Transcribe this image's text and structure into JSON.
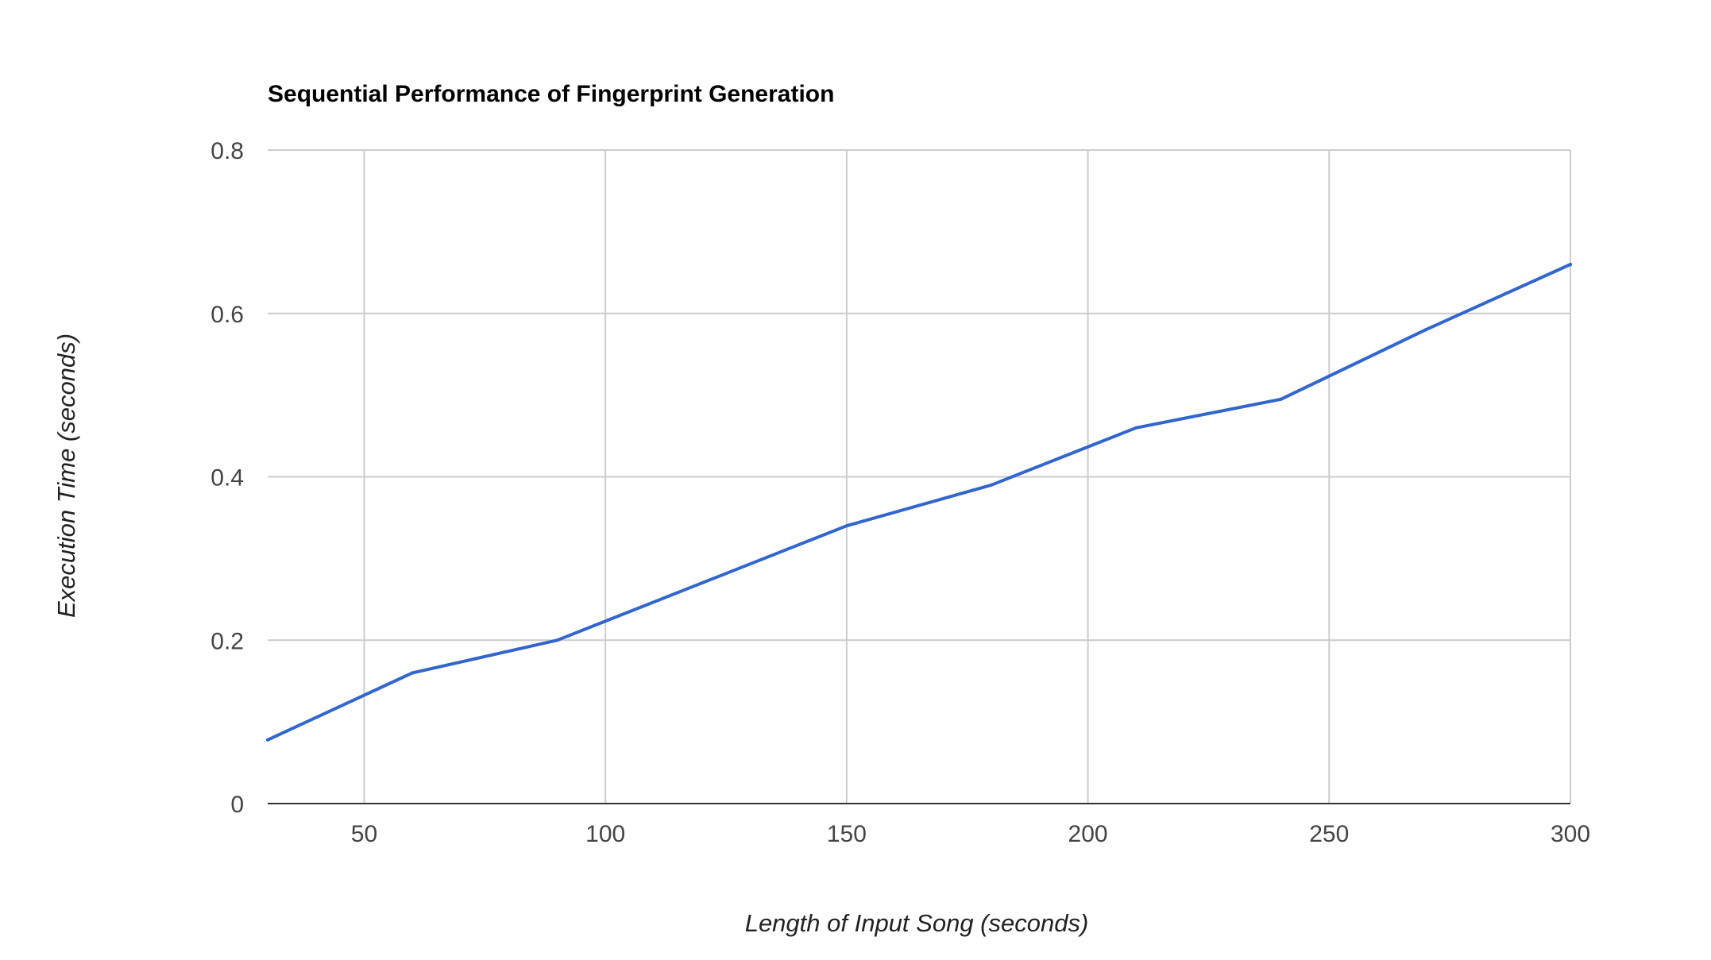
{
  "chart_data": {
    "type": "line",
    "title": "Sequential Performance of Fingerprint Generation",
    "xlabel": "Length of Input Song (seconds)",
    "ylabel": "Execution Time (seconds)",
    "xlim": [
      30,
      300
    ],
    "ylim": [
      0,
      0.8
    ],
    "xticks": [
      50,
      100,
      150,
      200,
      250,
      300
    ],
    "xtick_labels": [
      "50",
      "100",
      "150",
      "200",
      "250",
      "300"
    ],
    "yticks": [
      0,
      0.2,
      0.4,
      0.6,
      0.8
    ],
    "ytick_labels": [
      "0",
      "0.2",
      "0.4",
      "0.6",
      "0.8"
    ],
    "grid": true,
    "legend": "none",
    "series": [
      {
        "color": "#3366cc",
        "x": [
          30,
          60,
          90,
          120,
          150,
          180,
          210,
          240,
          270,
          300
        ],
        "y": [
          0.078,
          0.16,
          0.2,
          0.27,
          0.34,
          0.39,
          0.46,
          0.495,
          0.58,
          0.66
        ]
      }
    ],
    "colors": {
      "line": "#3366cc",
      "grid": "#cccccc",
      "axis": "#333333",
      "text": "#444444",
      "title": "#000000"
    }
  }
}
